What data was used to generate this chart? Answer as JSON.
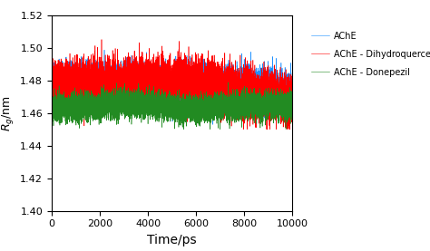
{
  "title": "",
  "xlabel": "Time/ps",
  "ylabel": "$R_g$/nm",
  "xlim": [
    0,
    10000
  ],
  "ylim": [
    1.4,
    1.52
  ],
  "xticks": [
    0,
    2000,
    4000,
    6000,
    8000,
    10000
  ],
  "yticks": [
    1.4,
    1.42,
    1.44,
    1.46,
    1.48,
    1.5,
    1.52
  ],
  "n_points": 10000,
  "blue_mean": 1.476,
  "blue_std": 0.006,
  "red_mean": 1.476,
  "red_std": 0.007,
  "green_mean": 1.464,
  "green_std": 0.004,
  "blue_color": "#1E90FF",
  "red_color": "#FF0000",
  "green_color": "#228B22",
  "legend_labels": [
    "AChE",
    "AChE - Dihydroquercetin",
    "AChE - Donepezil"
  ],
  "linewidth": 0.4,
  "xlabel_fontsize": 10,
  "ylabel_fontsize": 9,
  "tick_fontsize": 8,
  "legend_fontsize": 7
}
